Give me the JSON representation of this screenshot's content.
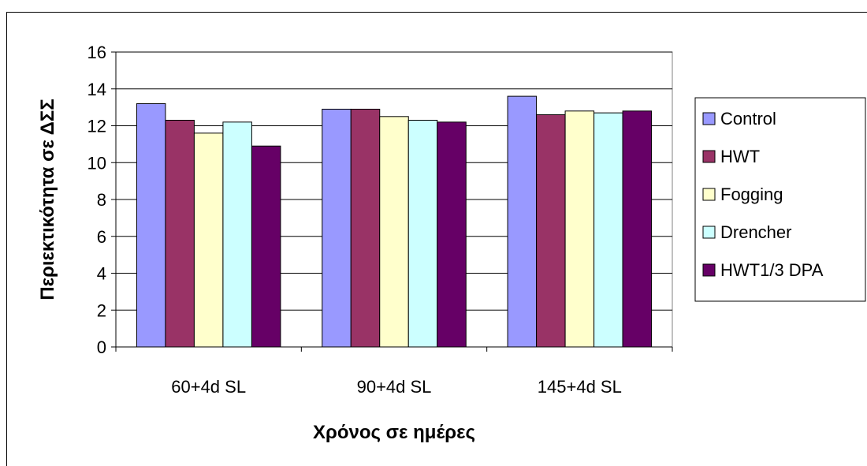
{
  "chart_data": {
    "type": "bar",
    "title": "",
    "xlabel": "Χρόνος σε ημέρες",
    "ylabel": "Περιεκτικότητα σε ΔΣΣ",
    "categories": [
      "60+4d SL",
      "90+4d SL",
      "145+4d SL"
    ],
    "ylim": [
      0,
      16
    ],
    "yticks": [
      0,
      2,
      4,
      6,
      8,
      10,
      12,
      14,
      16
    ],
    "grid": true,
    "legend_position": "right",
    "series": [
      {
        "name": "Control",
        "color": "#9999FF",
        "values": [
          13.2,
          12.9,
          13.6
        ]
      },
      {
        "name": "HWT",
        "color": "#993366",
        "values": [
          12.3,
          12.9,
          12.6
        ]
      },
      {
        "name": "Fogging",
        "color": "#FFFFCC",
        "values": [
          11.6,
          12.5,
          12.8
        ]
      },
      {
        "name": "Drencher",
        "color": "#CCFFFF",
        "values": [
          12.2,
          12.3,
          12.7
        ]
      },
      {
        "name": "HWT1/3 DPA",
        "color": "#660066",
        "values": [
          10.9,
          12.2,
          12.8
        ]
      }
    ]
  }
}
